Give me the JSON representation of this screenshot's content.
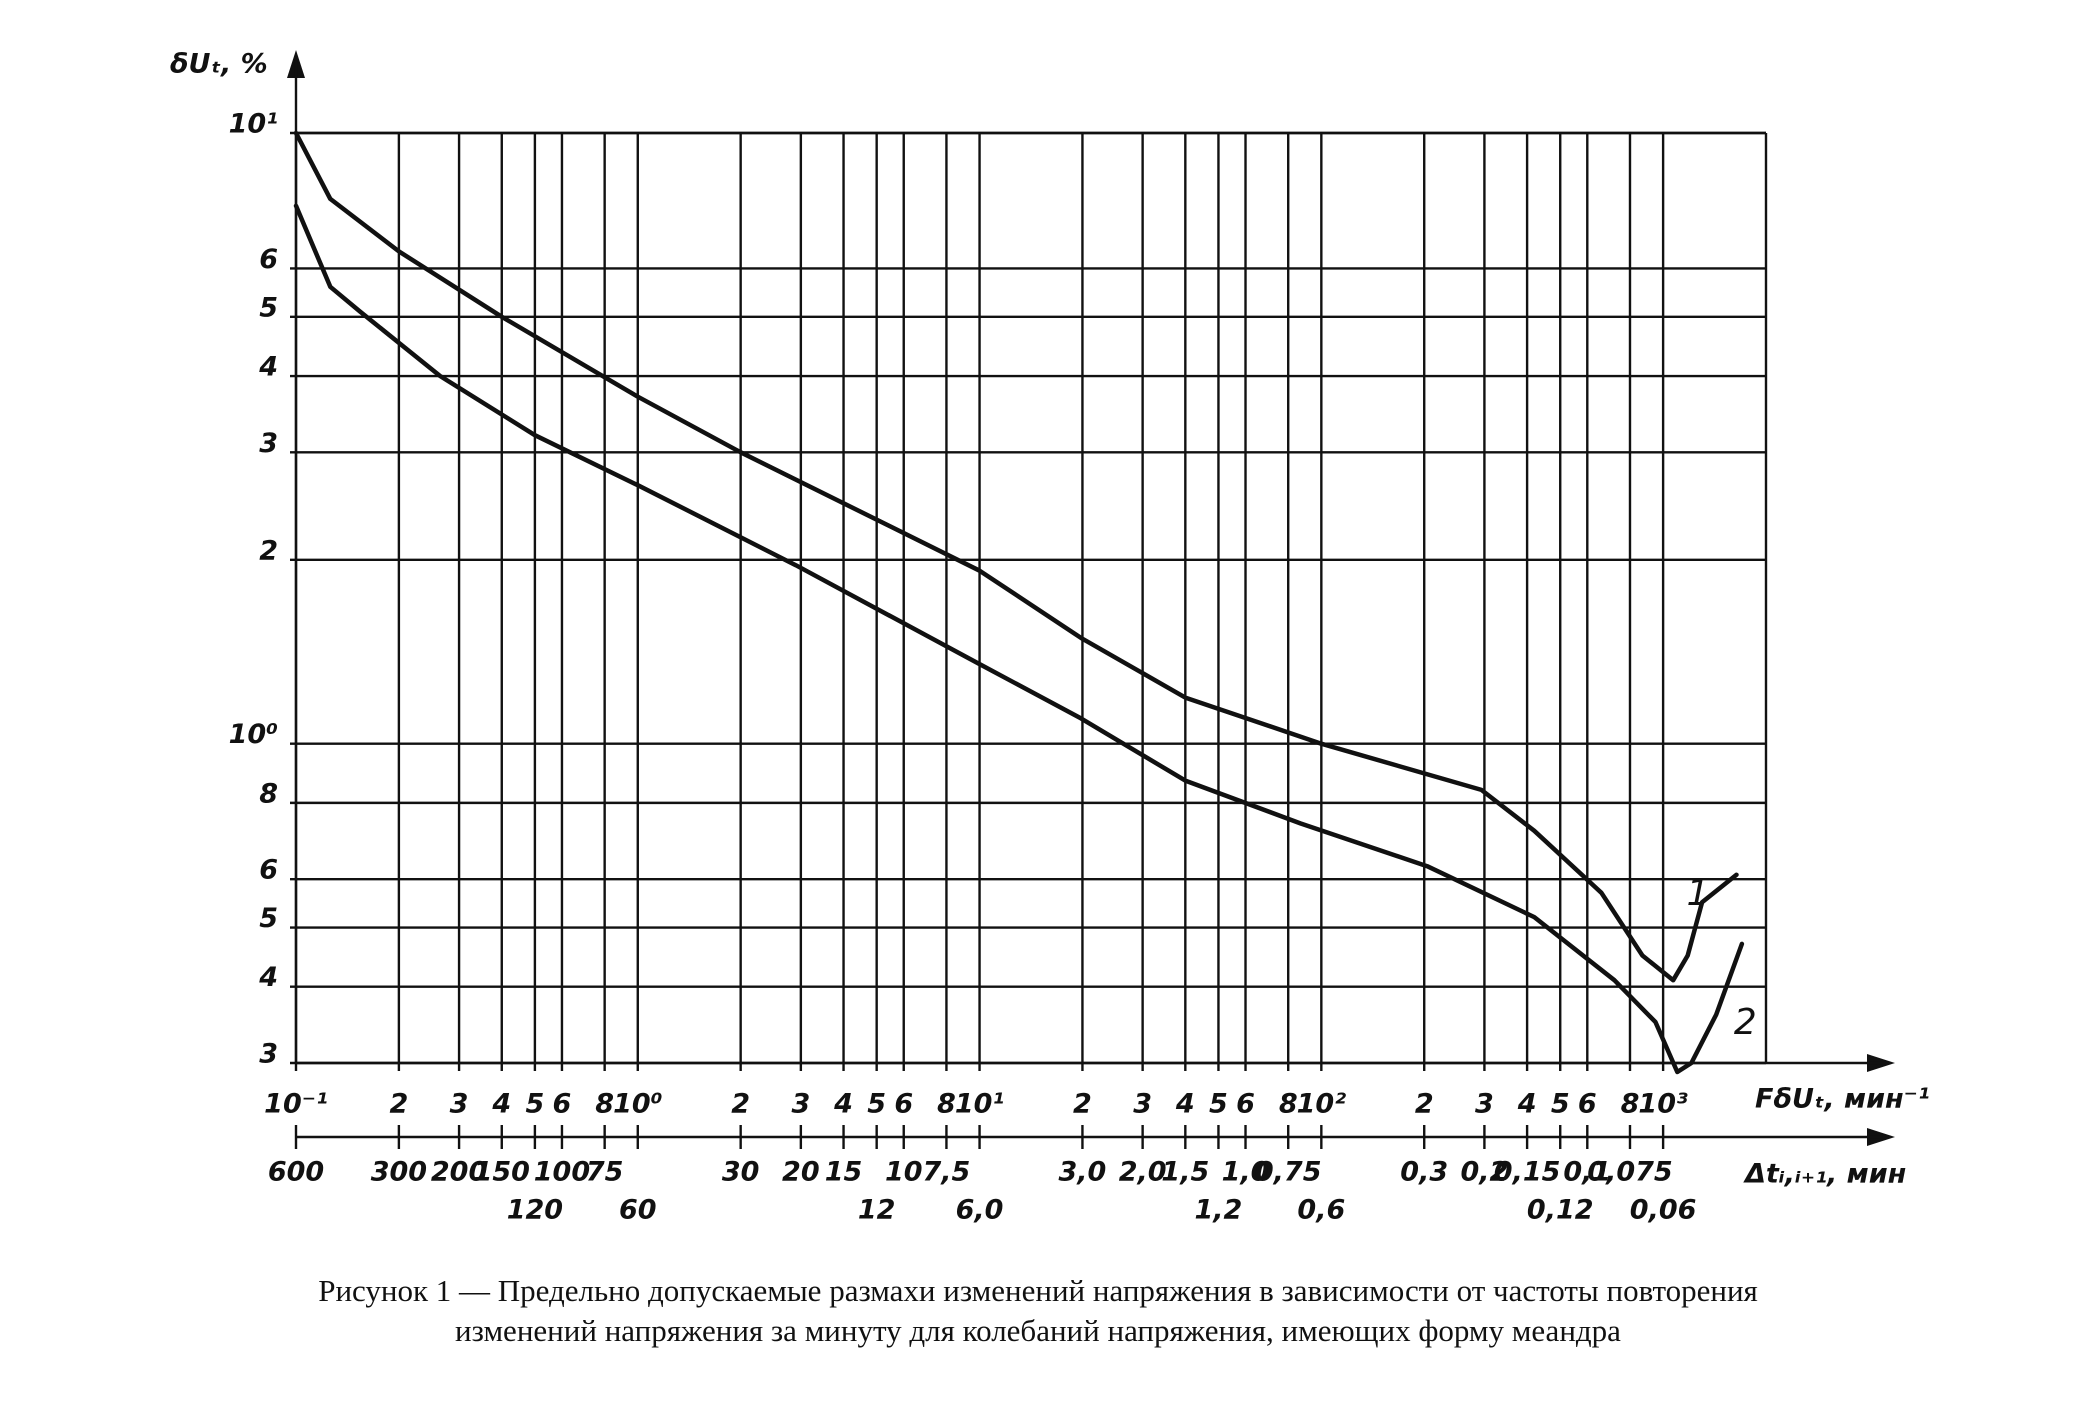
{
  "chart_data": {
    "type": "line",
    "ylabel": "δUₜ, %",
    "xlabel": "FδUₜ, мин⁻¹",
    "x2label": "Δtᵢ,ᵢ₊₁, мин",
    "caption": [
      "Рисунок 1 — Предельно допускаемые размахи изменений напряжения в зависимости от частоты повторения",
      "изменений напряжения за минуту для колебаний напряжения, имеющих форму меандра"
    ],
    "xscale": "log",
    "yscale": "log",
    "x2scale": "log",
    "grid": true,
    "color": "#111111",
    "xlim": [
      0.1,
      2000
    ],
    "ylim": [
      0.3,
      10
    ],
    "x2lim": [
      600,
      0.03
    ],
    "xticks": [
      {
        "value": 0.1,
        "label": "10⁻¹"
      },
      {
        "value": 0.2,
        "label": "2"
      },
      {
        "value": 0.3,
        "label": "3"
      },
      {
        "value": 0.4,
        "label": "4"
      },
      {
        "value": 0.5,
        "label": "5"
      },
      {
        "value": 0.6,
        "label": "6"
      },
      {
        "value": 0.8,
        "label": "8"
      },
      {
        "value": 1,
        "label": "10⁰"
      },
      2,
      3,
      4,
      5,
      6,
      8,
      {
        "value": 10,
        "label": "10¹"
      },
      {
        "value": 20,
        "label": "2"
      },
      {
        "value": 30,
        "label": "3"
      },
      {
        "value": 40,
        "label": "4"
      },
      {
        "value": 50,
        "label": "5"
      },
      {
        "value": 60,
        "label": "6"
      },
      {
        "value": 80,
        "label": "8"
      },
      {
        "value": 100,
        "label": "10²"
      },
      {
        "value": 200,
        "label": "2"
      },
      {
        "value": 300,
        "label": "3"
      },
      {
        "value": 400,
        "label": "4"
      },
      {
        "value": 500,
        "label": "5"
      },
      {
        "value": 600,
        "label": "6"
      },
      {
        "value": 800,
        "label": "8"
      },
      {
        "value": 1000,
        "label": "10³"
      }
    ],
    "yticks": [
      {
        "value": 10,
        "label": "10¹"
      },
      6,
      5,
      4,
      3,
      2,
      {
        "value": 1,
        "label": "10⁰"
      },
      {
        "value": 0.8,
        "label": "8"
      },
      {
        "value": 0.6,
        "label": "6"
      },
      {
        "value": 0.5,
        "label": "5"
      },
      {
        "value": 0.4,
        "label": "4"
      },
      {
        "value": 0.3,
        "label": "3"
      }
    ],
    "x2ticks": [
      600,
      300,
      200,
      150,
      120,
      100,
      75,
      60,
      30,
      20,
      15,
      12,
      10,
      {
        "value": 7.5,
        "label": "7,5"
      },
      {
        "value": 6.0,
        "label": "6,0"
      },
      {
        "value": 3.0,
        "label": "3,0"
      },
      {
        "value": 2.0,
        "label": "2,0"
      },
      {
        "value": 1.5,
        "label": "1,5"
      },
      {
        "value": 1.2,
        "label": "1,2"
      },
      {
        "value": 1.0,
        "label": "1,0"
      },
      {
        "value": 0.75,
        "label": "0,75"
      },
      {
        "value": 0.6,
        "label": "0,6"
      },
      {
        "value": 0.3,
        "label": "0,3"
      },
      {
        "value": 0.2,
        "label": "0,2"
      },
      {
        "value": 0.15,
        "label": "0,15"
      },
      {
        "value": 0.12,
        "label": "0,12"
      },
      {
        "value": 0.1,
        "label": "0,1"
      },
      {
        "value": 0.075,
        "label": "0,075"
      },
      {
        "value": 0.06,
        "label": "0,06"
      }
    ],
    "series": [
      {
        "name": "1",
        "color": "#111111",
        "x": [
          0.1,
          0.126,
          0.2,
          0.4,
          1,
          2,
          10,
          19.8,
          40,
          100,
          294,
          420,
          660,
          870,
          1070,
          1180,
          1300,
          1640
        ],
        "values": [
          10,
          7.8,
          6.4,
          5.0,
          3.7,
          3.0,
          1.92,
          1.49,
          1.19,
          1.0,
          0.84,
          0.72,
          0.57,
          0.45,
          0.41,
          0.45,
          0.55,
          0.61
        ]
      },
      {
        "name": "2",
        "color": "#111111",
        "x": [
          0.1,
          0.126,
          0.154,
          0.264,
          0.5,
          1,
          2.9,
          10,
          19.8,
          40,
          87,
          204,
          420,
          720,
          950,
          1100,
          1210,
          1430,
          1700
        ],
        "values": [
          7.6,
          5.6,
          5.1,
          4.0,
          3.2,
          2.65,
          1.96,
          1.35,
          1.1,
          0.87,
          0.74,
          0.63,
          0.52,
          0.41,
          0.35,
          0.29,
          0.3,
          0.36,
          0.47
        ]
      }
    ]
  }
}
